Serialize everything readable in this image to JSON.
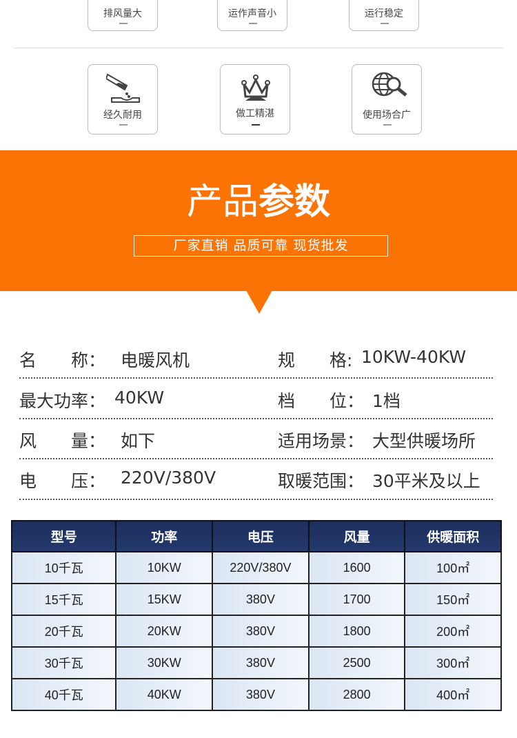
{
  "features": [
    {
      "label": "排风量大",
      "icon": "airflow-icon"
    },
    {
      "label": "运作声音小",
      "icon": "quiet-icon"
    },
    {
      "label": "运行稳定",
      "icon": "stable-icon"
    },
    {
      "label": "经久耐用",
      "icon": "test-tube-icon"
    },
    {
      "label": "做工精湛",
      "icon": "crown-icon"
    },
    {
      "label": "使用场合广",
      "icon": "globe-search-icon"
    }
  ],
  "banner": {
    "title_light": "产品",
    "title_bold": "参数",
    "subtitle": "厂家直销 品质可靠 现货批发",
    "color": "#fb7305"
  },
  "specs": [
    {
      "label": "名　　称：",
      "value": "电暖风机"
    },
    {
      "label": "规　　格:",
      "value": "10KW-40KW"
    },
    {
      "label": "最大功率：",
      "value": "40KW"
    },
    {
      "label": "档　　位：",
      "value": "1档"
    },
    {
      "label": "风　　量：",
      "value": "如下"
    },
    {
      "label": "适用场景：",
      "value": "大型供暖场所"
    },
    {
      "label": "电　　压：",
      "value": "220V/380V"
    },
    {
      "label": "取暖范围：",
      "value": "30平米及以上"
    }
  ],
  "table": {
    "headers": [
      "型号",
      "功率",
      "电压",
      "风量",
      "供暖面积"
    ],
    "rows": [
      [
        "10千瓦",
        "10KW",
        "220V/380V",
        "1600",
        "100㎡"
      ],
      [
        "15千瓦",
        "15KW",
        "380V",
        "1700",
        "150㎡"
      ],
      [
        "20千瓦",
        "20KW",
        "380V",
        "1800",
        "200㎡"
      ],
      [
        "30千瓦",
        "30KW",
        "380V",
        "2500",
        "300㎡"
      ],
      [
        "40千瓦",
        "40KW",
        "380V",
        "2800",
        "400㎡"
      ]
    ]
  }
}
